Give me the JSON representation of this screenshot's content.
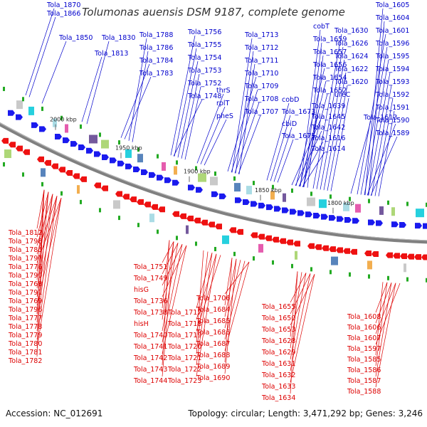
{
  "title": "Tolumonas auensis DSM 9187, complete genome",
  "footer": {
    "accession": "Accession: NC_012691",
    "summary": "Topology: circular; Length: 3,471,292 bp; Genes: 3,246"
  },
  "colors": {
    "forward_label": "#0000cc",
    "reverse_label": "#dd0000",
    "forward_gene": "#1a1aee",
    "reverse_gene": "#ee1111",
    "backbone": "#808080",
    "tick": "#22aa22"
  },
  "scale_ticks": [
    "2000 kbp",
    "1950 kbp",
    "1900 kbp",
    "1850 kbp",
    "1800 kbp"
  ],
  "forward_labels": [
    "Tola_1870",
    "Tola_1866",
    "Tola_1850",
    "Tola_1830",
    "Tola_1813",
    "Tola_1788",
    "Tola_1786",
    "Tola_1784",
    "Tola_1783",
    "Tola_1756",
    "Tola_1755",
    "Tola_1754",
    "Tola_1753",
    "Tola_1752",
    "Tola_1748",
    "thrS",
    "rplT",
    "pheS",
    "Tola_1713",
    "Tola_1712",
    "Tola_1711",
    "Tola_1710",
    "Tola_1709",
    "Tola_1708",
    "Tola_1707",
    "cobT",
    "Tola_1659",
    "Tola_1657",
    "Tola_1656",
    "Tola_1654",
    "Tola_1652",
    "cobD",
    "Tola_1673",
    "cbiD",
    "Tola_1675",
    "Tola_1630",
    "Tola_1626",
    "Tola_1624",
    "Tola_1622",
    "Tola_1620",
    "ureC",
    "Tola_1639",
    "Tola_1645",
    "Tola_1642",
    "Tola_1616",
    "Tola_1614",
    "Tola_1613",
    "Tola_1605",
    "Tola_1604",
    "Tola_1601",
    "Tola_1596",
    "Tola_1595",
    "Tola_1594",
    "Tola_1593",
    "Tola_1592",
    "Tola_1591",
    "Tola_1590",
    "Tola_1589"
  ],
  "reverse_labels": [
    "Tola_1812",
    "Tola_1798",
    "Tola_1785",
    "Tola_1797",
    "Tola_1776",
    "Tola_1790",
    "Tola_1768",
    "Tola_1791",
    "Tola_1769",
    "Tola_1796",
    "Tola_1777",
    "Tola_1778",
    "Tola_1779",
    "Tola_1780",
    "Tola_1781",
    "Tola_1782",
    "Tola_1751",
    "Tola_1749",
    "hisG",
    "Tola_1736",
    "Tola_1738",
    "hisH",
    "Tola_1740",
    "Tola_1741",
    "Tola_1742",
    "Tola_1743",
    "Tola_1744",
    "Tola_1717",
    "Tola_1718",
    "Tola_1719",
    "Tola_1720",
    "Tola_1721",
    "Tola_1722",
    "Tola_1723",
    "Tola_1706",
    "Tola_1684",
    "Tola_1685",
    "Tola_1686",
    "Tola_1687",
    "Tola_1688",
    "Tola_1689",
    "Tola_1690",
    "Tola_1655",
    "Tola_1650",
    "Tola_1653",
    "Tola_1628",
    "Tola_1629",
    "Tola_1631",
    "Tola_1632",
    "Tola_1633",
    "Tola_1634",
    "Tola_1608",
    "Tola_1606",
    "Tola_1607",
    "Tola_1597",
    "Tola_1585",
    "Tola_1586",
    "Tola_1587",
    "Tola_1588"
  ]
}
